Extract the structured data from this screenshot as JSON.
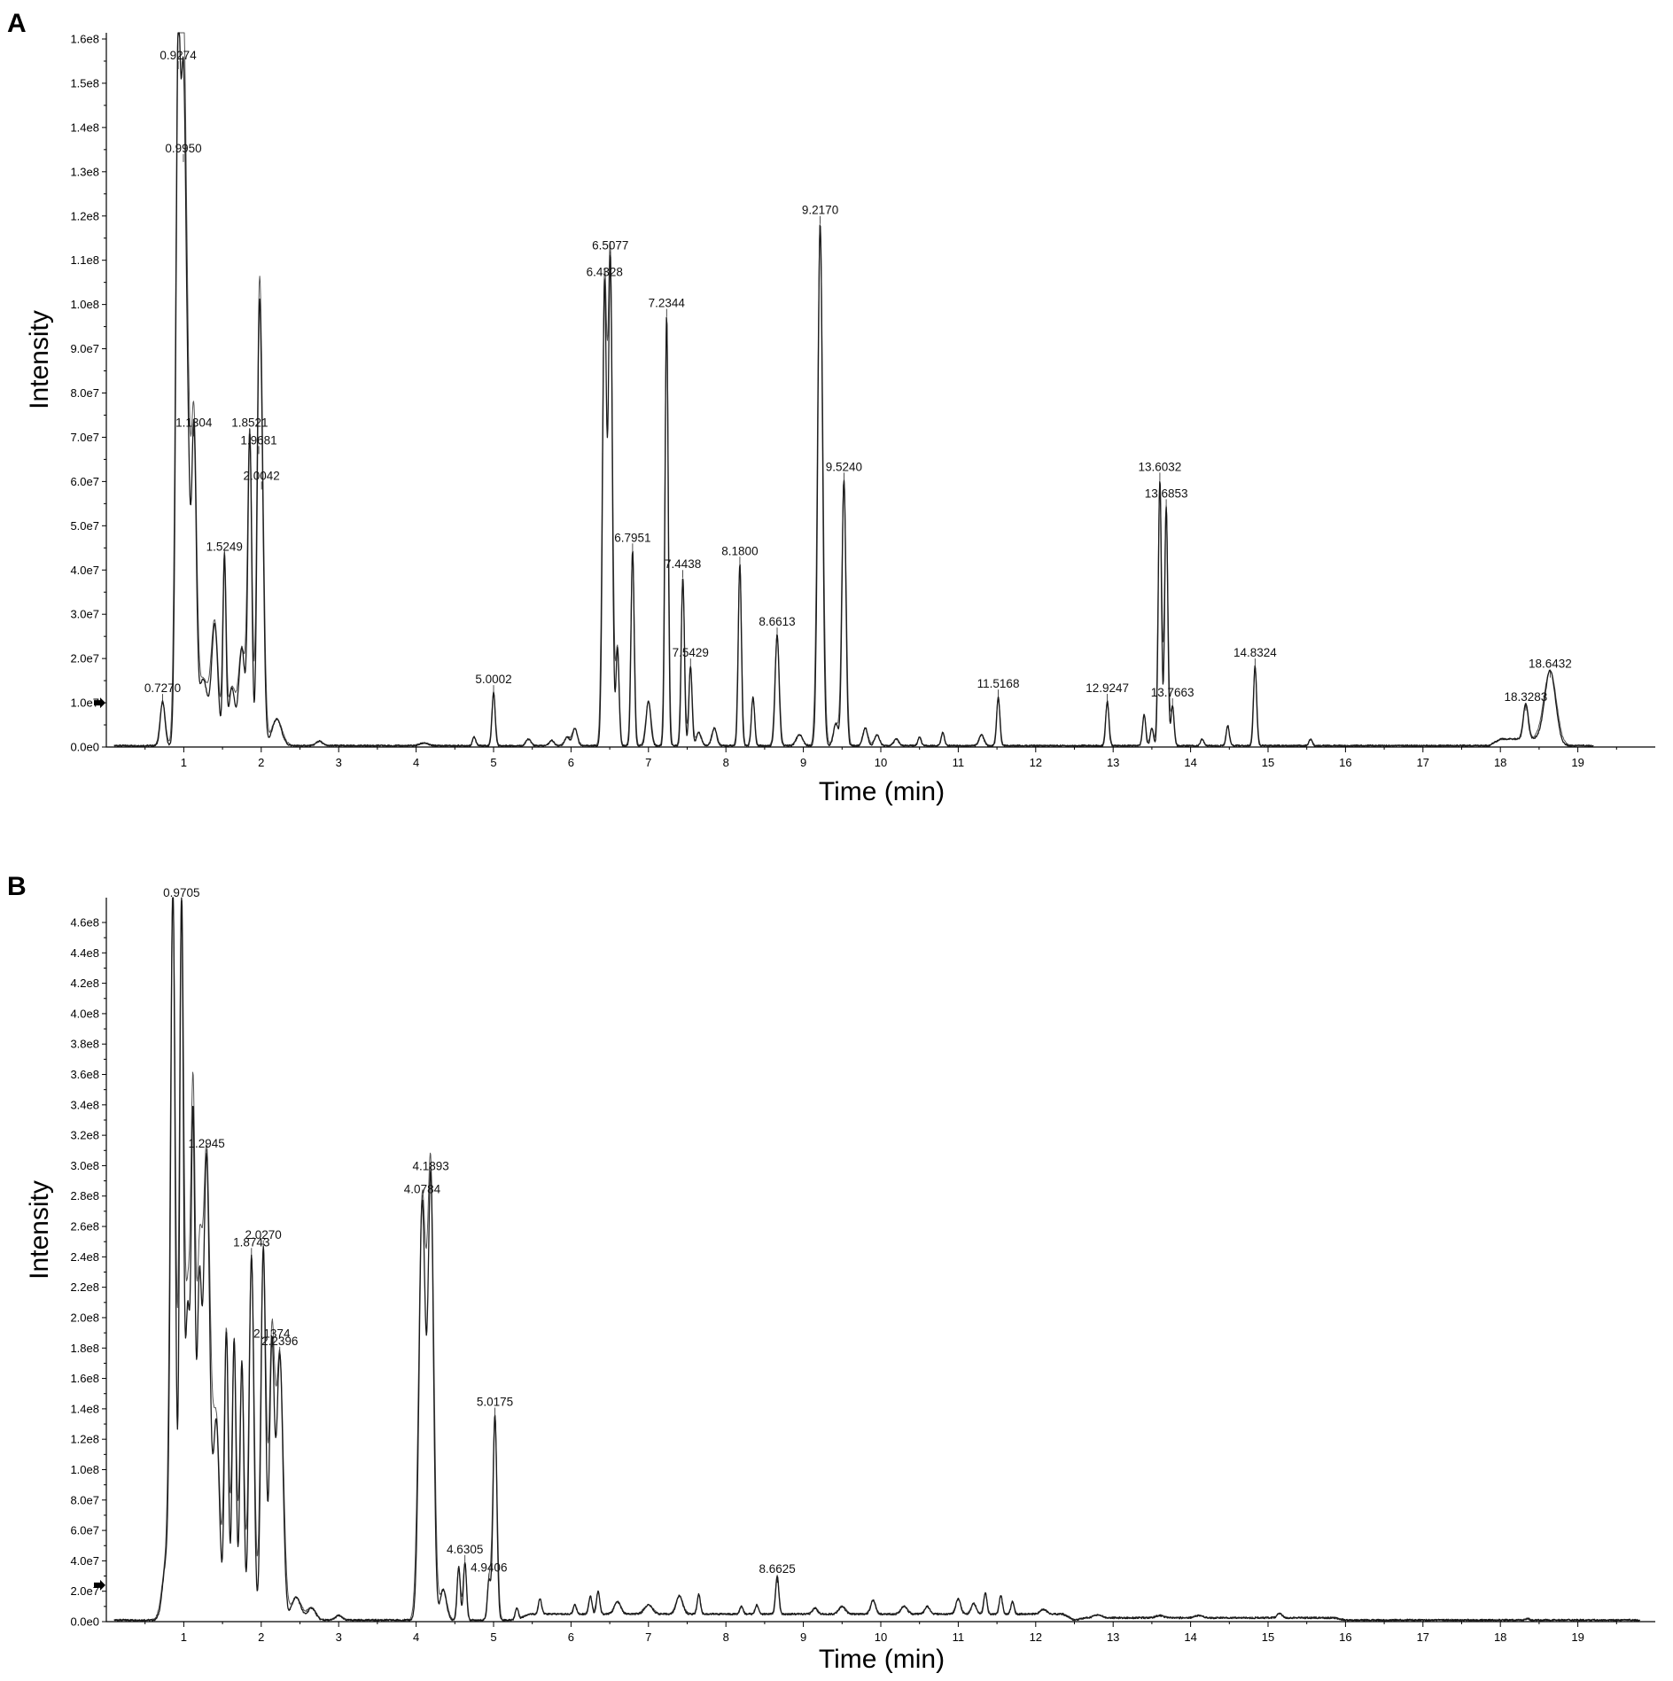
{
  "chart_data": [
    {
      "panel": "A",
      "type": "line",
      "xlabel": "Time (min)",
      "ylabel": "Intensity",
      "xlim": [
        0,
        20
      ],
      "ylim": [
        0,
        160000000
      ],
      "x_ticks": [
        "1",
        "2",
        "3",
        "4",
        "5",
        "6",
        "7",
        "8",
        "9",
        "10",
        "11",
        "12",
        "13",
        "14",
        "15",
        "16",
        "17",
        "18",
        "19"
      ],
      "y_ticks": [
        "0.0e0",
        "1.0e7",
        "2.0e7",
        "3.0e7",
        "4.0e7",
        "5.0e7",
        "6.0e7",
        "7.0e7",
        "8.0e7",
        "9.0e7",
        "1.0e8",
        "1.1e8",
        "1.2e8",
        "1.3e8",
        "1.4e8",
        "1.5e8",
        "1.6e8"
      ],
      "baseline_marker": 10000000,
      "baseline": 300000,
      "peaks": [
        {
          "rt": 0.727,
          "h": 10000000,
          "w": 0.03,
          "label": "0.7270"
        },
        {
          "rt": 0.9274,
          "h": 153000000,
          "w": 0.03,
          "label": "0.9274"
        },
        {
          "rt": 0.995,
          "h": 132000000,
          "w": 0.03,
          "label": "0.9950"
        },
        {
          "rt": 1.05,
          "h": 60000000,
          "w": 0.03
        },
        {
          "rt": 1.1304,
          "h": 70000000,
          "w": 0.03,
          "label": "1.1304"
        },
        {
          "rt": 1.25,
          "h": 15000000,
          "w": 0.06
        },
        {
          "rt": 1.4,
          "h": 27000000,
          "w": 0.04
        },
        {
          "rt": 1.5249,
          "h": 42000000,
          "w": 0.02,
          "label": "1.5249"
        },
        {
          "rt": 1.62,
          "h": 13000000,
          "w": 0.04
        },
        {
          "rt": 1.75,
          "h": 22000000,
          "w": 0.04
        },
        {
          "rt": 1.8521,
          "h": 70000000,
          "w": 0.025,
          "label": "1.8521"
        },
        {
          "rt": 1.9681,
          "h": 66000000,
          "w": 0.025,
          "label": "1.9681"
        },
        {
          "rt": 2.0042,
          "h": 58000000,
          "w": 0.03,
          "label": "2.0042"
        },
        {
          "rt": 2.2,
          "h": 6000000,
          "w": 0.06
        },
        {
          "rt": 2.75,
          "h": 1000000,
          "w": 0.04
        },
        {
          "rt": 4.1,
          "h": 600000,
          "w": 0.05
        },
        {
          "rt": 4.75,
          "h": 2000000,
          "w": 0.02
        },
        {
          "rt": 5.0002,
          "h": 12000000,
          "w": 0.02,
          "label": "5.0002"
        },
        {
          "rt": 5.45,
          "h": 1500000,
          "w": 0.03
        },
        {
          "rt": 5.75,
          "h": 1200000,
          "w": 0.03
        },
        {
          "rt": 5.95,
          "h": 2000000,
          "w": 0.03
        },
        {
          "rt": 6.05,
          "h": 4000000,
          "w": 0.03
        },
        {
          "rt": 6.4328,
          "h": 104000000,
          "w": 0.025,
          "label": "6.4328"
        },
        {
          "rt": 6.5077,
          "h": 110000000,
          "w": 0.025,
          "label": "6.5077"
        },
        {
          "rt": 6.6,
          "h": 22000000,
          "w": 0.02
        },
        {
          "rt": 6.7951,
          "h": 44000000,
          "w": 0.02,
          "label": "6.7951"
        },
        {
          "rt": 7.0,
          "h": 10000000,
          "w": 0.03
        },
        {
          "rt": 7.2344,
          "h": 97000000,
          "w": 0.02,
          "label": "7.2344"
        },
        {
          "rt": 7.4438,
          "h": 38000000,
          "w": 0.02,
          "label": "7.4438"
        },
        {
          "rt": 7.5429,
          "h": 18000000,
          "w": 0.02,
          "label": "7.5429"
        },
        {
          "rt": 7.65,
          "h": 3000000,
          "w": 0.03
        },
        {
          "rt": 7.85,
          "h": 4000000,
          "w": 0.03
        },
        {
          "rt": 8.18,
          "h": 41000000,
          "w": 0.02,
          "label": "8.1800"
        },
        {
          "rt": 8.35,
          "h": 11000000,
          "w": 0.02
        },
        {
          "rt": 8.6613,
          "h": 25000000,
          "w": 0.025,
          "label": "8.6613"
        },
        {
          "rt": 8.95,
          "h": 2500000,
          "w": 0.04
        },
        {
          "rt": 9.217,
          "h": 118000000,
          "w": 0.03,
          "label": "9.2170"
        },
        {
          "rt": 9.42,
          "h": 5000000,
          "w": 0.03
        },
        {
          "rt": 9.524,
          "h": 60000000,
          "w": 0.025,
          "label": "9.5240"
        },
        {
          "rt": 9.8,
          "h": 4000000,
          "w": 0.03
        },
        {
          "rt": 9.95,
          "h": 2500000,
          "w": 0.03
        },
        {
          "rt": 10.2,
          "h": 1500000,
          "w": 0.03
        },
        {
          "rt": 10.5,
          "h": 2000000,
          "w": 0.02
        },
        {
          "rt": 10.8,
          "h": 3000000,
          "w": 0.02
        },
        {
          "rt": 11.3,
          "h": 2500000,
          "w": 0.03
        },
        {
          "rt": 11.5168,
          "h": 11000000,
          "w": 0.02,
          "label": "11.5168"
        },
        {
          "rt": 12.9247,
          "h": 10000000,
          "w": 0.02,
          "label": "12.9247"
        },
        {
          "rt": 13.4,
          "h": 7000000,
          "w": 0.02
        },
        {
          "rt": 13.5,
          "h": 4000000,
          "w": 0.02
        },
        {
          "rt": 13.6032,
          "h": 60000000,
          "w": 0.02,
          "label": "13.6032"
        },
        {
          "rt": 13.6853,
          "h": 54000000,
          "w": 0.02,
          "label": "13.6853"
        },
        {
          "rt": 13.7663,
          "h": 9000000,
          "w": 0.02,
          "label": "13.7663"
        },
        {
          "rt": 14.15,
          "h": 1500000,
          "w": 0.02
        },
        {
          "rt": 14.48,
          "h": 4500000,
          "w": 0.02
        },
        {
          "rt": 14.8324,
          "h": 18000000,
          "w": 0.02,
          "label": "14.8324"
        },
        {
          "rt": 15.55,
          "h": 1500000,
          "w": 0.02
        },
        {
          "rt": 18.3283,
          "h": 8000000,
          "w": 0.03,
          "label": "18.3283"
        },
        {
          "rt": 18.6432,
          "h": 15500000,
          "w": 0.07,
          "label": "18.6432"
        }
      ],
      "humps": [
        {
          "from": 17.85,
          "to": 18.8,
          "level": 1500000
        }
      ]
    },
    {
      "panel": "B",
      "type": "line",
      "xlabel": "Time (min)",
      "ylabel": "Intensity",
      "xlim": [
        0,
        20
      ],
      "ylim": [
        0,
        480000000
      ],
      "x_ticks": [
        "1",
        "2",
        "3",
        "4",
        "5",
        "6",
        "7",
        "8",
        "9",
        "10",
        "11",
        "12",
        "13",
        "14",
        "15",
        "16",
        "17",
        "18",
        "19"
      ],
      "y_ticks": [
        "0.0e0",
        "2.0e7",
        "4.0e7",
        "6.0e7",
        "8.0e7",
        "1.0e8",
        "1.2e8",
        "1.4e8",
        "1.6e8",
        "1.8e8",
        "2.0e8",
        "2.2e8",
        "2.4e8",
        "2.6e8",
        "2.8e8",
        "3.0e8",
        "3.2e8",
        "3.4e8",
        "3.6e8",
        "3.8e8",
        "4.0e8",
        "4.2e8",
        "4.4e8",
        "4.6e8"
      ],
      "baseline_marker": 24000000,
      "baseline": 1000000,
      "peaks": [
        {
          "rt": 0.78,
          "h": 40000000,
          "w": 0.05
        },
        {
          "rt": 0.86,
          "h": 470000000,
          "w": 0.03
        },
        {
          "rt": 0.9705,
          "h": 470000000,
          "w": 0.025,
          "label": "0.9705"
        },
        {
          "rt": 1.05,
          "h": 200000000,
          "w": 0.03
        },
        {
          "rt": 1.12,
          "h": 320000000,
          "w": 0.025
        },
        {
          "rt": 1.2,
          "h": 210000000,
          "w": 0.03
        },
        {
          "rt": 1.2945,
          "h": 305000000,
          "w": 0.04,
          "label": "1.2945"
        },
        {
          "rt": 1.42,
          "h": 130000000,
          "w": 0.04
        },
        {
          "rt": 1.55,
          "h": 190000000,
          "w": 0.025
        },
        {
          "rt": 1.65,
          "h": 185000000,
          "w": 0.025
        },
        {
          "rt": 1.75,
          "h": 170000000,
          "w": 0.025
        },
        {
          "rt": 1.8743,
          "h": 240000000,
          "w": 0.03,
          "label": "1.8743"
        },
        {
          "rt": 2.027,
          "h": 245000000,
          "w": 0.03,
          "label": "2.0270"
        },
        {
          "rt": 2.1374,
          "h": 180000000,
          "w": 0.03,
          "label": "2.1374"
        },
        {
          "rt": 2.2396,
          "h": 175000000,
          "w": 0.04,
          "label": "2.2396"
        },
        {
          "rt": 2.45,
          "h": 15000000,
          "w": 0.06
        },
        {
          "rt": 2.65,
          "h": 8000000,
          "w": 0.05
        },
        {
          "rt": 3.0,
          "h": 3000000,
          "w": 0.04
        },
        {
          "rt": 4.0784,
          "h": 275000000,
          "w": 0.04,
          "label": "4.0784"
        },
        {
          "rt": 4.1893,
          "h": 290000000,
          "w": 0.035,
          "label": "4.1893"
        },
        {
          "rt": 4.35,
          "h": 20000000,
          "w": 0.04
        },
        {
          "rt": 4.55,
          "h": 35000000,
          "w": 0.02
        },
        {
          "rt": 4.6305,
          "h": 38000000,
          "w": 0.02,
          "label": "4.6305"
        },
        {
          "rt": 4.9406,
          "h": 26000000,
          "w": 0.02,
          "label": "4.9406"
        },
        {
          "rt": 5.0175,
          "h": 135000000,
          "w": 0.025,
          "label": "5.0175"
        },
        {
          "rt": 5.3,
          "h": 8000000,
          "w": 0.02
        },
        {
          "rt": 5.6,
          "h": 10000000,
          "w": 0.02
        },
        {
          "rt": 6.05,
          "h": 6000000,
          "w": 0.02
        },
        {
          "rt": 6.25,
          "h": 12000000,
          "w": 0.02
        },
        {
          "rt": 6.35,
          "h": 15000000,
          "w": 0.02
        },
        {
          "rt": 6.6,
          "h": 8000000,
          "w": 0.04
        },
        {
          "rt": 7.0,
          "h": 6000000,
          "w": 0.05
        },
        {
          "rt": 7.4,
          "h": 12000000,
          "w": 0.04
        },
        {
          "rt": 7.65,
          "h": 13000000,
          "w": 0.02
        },
        {
          "rt": 8.2,
          "h": 5000000,
          "w": 0.02
        },
        {
          "rt": 8.4,
          "h": 6000000,
          "w": 0.02
        },
        {
          "rt": 8.6625,
          "h": 25000000,
          "w": 0.02,
          "label": "8.6625"
        },
        {
          "rt": 9.15,
          "h": 4000000,
          "w": 0.03
        },
        {
          "rt": 9.5,
          "h": 5000000,
          "w": 0.04
        },
        {
          "rt": 9.9,
          "h": 9000000,
          "w": 0.03
        },
        {
          "rt": 10.3,
          "h": 5000000,
          "w": 0.04
        },
        {
          "rt": 10.6,
          "h": 5000000,
          "w": 0.03
        },
        {
          "rt": 11.0,
          "h": 10000000,
          "w": 0.03
        },
        {
          "rt": 11.2,
          "h": 7000000,
          "w": 0.03
        },
        {
          "rt": 11.35,
          "h": 14000000,
          "w": 0.02
        },
        {
          "rt": 11.55,
          "h": 12000000,
          "w": 0.02
        },
        {
          "rt": 11.7,
          "h": 8000000,
          "w": 0.02
        },
        {
          "rt": 12.1,
          "h": 3000000,
          "w": 0.04
        },
        {
          "rt": 12.8,
          "h": 2000000,
          "w": 0.05
        },
        {
          "rt": 13.6,
          "h": 1500000,
          "w": 0.05
        },
        {
          "rt": 14.1,
          "h": 1500000,
          "w": 0.05
        },
        {
          "rt": 15.15,
          "h": 3000000,
          "w": 0.03
        },
        {
          "rt": 18.35,
          "h": 1000000,
          "w": 0.02
        }
      ],
      "humps": [
        {
          "from": 5.3,
          "to": 12.5,
          "level": 4000000
        },
        {
          "from": 12.5,
          "to": 16.0,
          "level": 1500000
        }
      ]
    }
  ]
}
